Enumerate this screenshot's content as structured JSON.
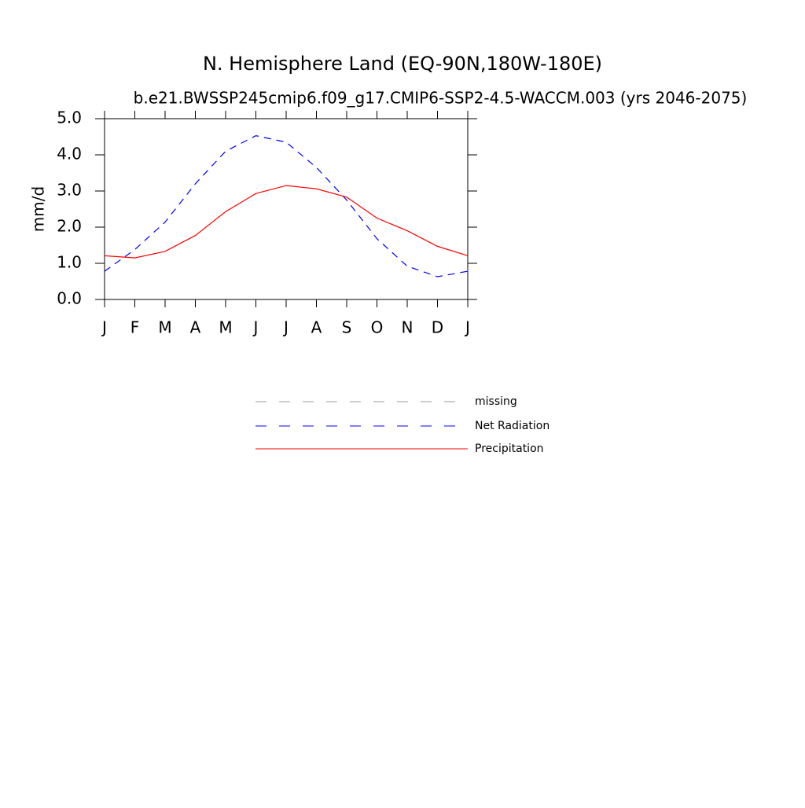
{
  "chart_data": {
    "type": "line",
    "title": "N. Hemisphere Land (EQ-90N,180W-180E)",
    "subtitle": "b.e21.BWSSP245cmip6.f09_g17.CMIP6-SSP2-4.5-WACCM.003 (yrs 2046-2075)",
    "y_label": "mm/d",
    "categories": [
      "J",
      "F",
      "M",
      "A",
      "M",
      "J",
      "J",
      "A",
      "S",
      "O",
      "N",
      "D",
      "J"
    ],
    "ylim": [
      0,
      5
    ],
    "yticks": [
      {
        "value": 0,
        "label": "0.0"
      },
      {
        "value": 1,
        "label": "1.0"
      },
      {
        "value": 2,
        "label": "2.0"
      },
      {
        "value": 3,
        "label": "3.0"
      },
      {
        "value": 4,
        "label": "4.0"
      },
      {
        "value": 5,
        "label": "5.0"
      }
    ],
    "series": [
      {
        "name": "missing",
        "color": "#999999",
        "line_style": "dashed",
        "values": [
          null,
          null,
          null,
          null,
          null,
          null,
          null,
          null,
          null,
          null,
          null,
          null,
          null
        ]
      },
      {
        "name": "Net Radiation",
        "color": "#0000ff",
        "line_style": "dashed",
        "values": [
          0.78,
          1.38,
          2.14,
          3.2,
          4.1,
          4.53,
          4.35,
          3.65,
          2.75,
          1.68,
          0.92,
          0.63,
          0.78
        ]
      },
      {
        "name": "Precipitation",
        "color": "#ff0000",
        "line_style": "solid",
        "values": [
          1.21,
          1.15,
          1.33,
          1.77,
          2.43,
          2.93,
          3.15,
          3.06,
          2.83,
          2.25,
          1.9,
          1.47,
          1.21
        ]
      }
    ]
  }
}
